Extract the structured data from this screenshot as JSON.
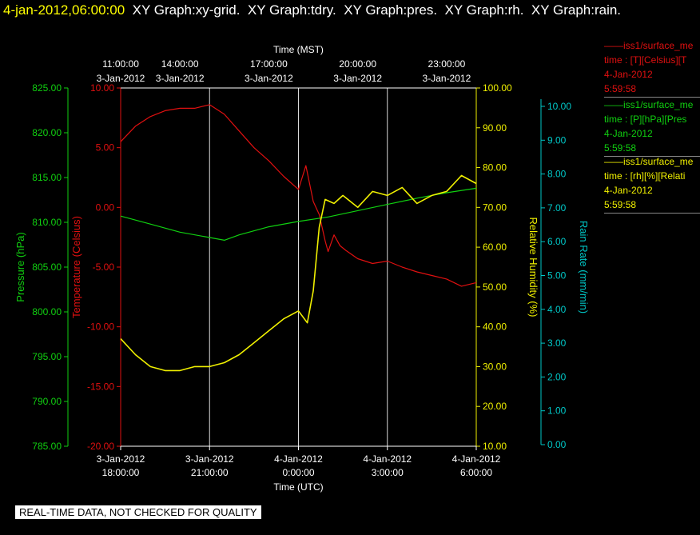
{
  "header": {
    "timestamp": "4-jan-2012,06:00:00",
    "graphs": [
      "XY Graph:xy-grid.",
      "XY Graph:tdry.",
      "XY Graph:pres.",
      "XY Graph:rh.",
      "XY Graph:rain."
    ]
  },
  "colors": {
    "temperature": "#e01010",
    "pressure": "#10d010",
    "humidity": "#f0f000",
    "rain": "#00c8c8",
    "timestamp": "#ffff00",
    "grid": "#ffffff"
  },
  "notice": "REAL-TIME DATA, NOT CHECKED FOR QUALITY",
  "legend": [
    {
      "line1": "iss1/surface_me",
      "line2": "time : [T][Celsius][T",
      "line3": "4-Jan-2012",
      "line4": "5:59:58",
      "color": "#e01010"
    },
    {
      "line1": "iss1/surface_me",
      "line2": "time : [P][hPa][Pres",
      "line3": "4-Jan-2012",
      "line4": "5:59:58",
      "color": "#10d010"
    },
    {
      "line1": "iss1/surface_me",
      "line2": "time : [rh][%][Relati",
      "line3": "4-Jan-2012",
      "line4": "5:59:58",
      "color": "#f0f000"
    }
  ],
  "chart_data": {
    "type": "line",
    "top_axis": {
      "title": "Time (MST)",
      "ticks": [
        {
          "time": "11:00:00",
          "date": "3-Jan-2012"
        },
        {
          "time": "14:00:00",
          "date": "3-Jan-2012"
        },
        {
          "time": "17:00:00",
          "date": "3-Jan-2012"
        },
        {
          "time": "20:00:00",
          "date": "3-Jan-2012"
        },
        {
          "time": "23:00:00",
          "date": "3-Jan-2012"
        }
      ]
    },
    "bottom_axis": {
      "title": "Time (UTC)",
      "range": [
        "2012-01-03 18:00:00",
        "2012-01-04 06:00:00"
      ],
      "ticks": [
        {
          "date": "3-Jan-2012",
          "time": "18:00:00"
        },
        {
          "date": "3-Jan-2012",
          "time": "21:00:00"
        },
        {
          "date": "4-Jan-2012",
          "time": "0:00:00"
        },
        {
          "date": "4-Jan-2012",
          "time": "3:00:00"
        },
        {
          "date": "4-Jan-2012",
          "time": "6:00:00"
        }
      ]
    },
    "axes": {
      "pressure": {
        "label": "Pressure (hPa)",
        "range": [
          785,
          825
        ],
        "ticks": [
          "825.00",
          "820.00",
          "815.00",
          "810.00",
          "805.00",
          "800.00",
          "795.00",
          "790.00",
          "785.00"
        ]
      },
      "temperature": {
        "label": "Temperature (Celsius)",
        "range": [
          -20,
          10
        ],
        "ticks": [
          "10.00",
          "5.00",
          "0.00",
          "-5.00",
          "-10.00",
          "-15.00",
          "-20.00"
        ]
      },
      "humidity": {
        "label": "Relative Humidity (%)",
        "range": [
          10,
          100
        ],
        "ticks": [
          "100.00",
          "90.00",
          "80.00",
          "70.00",
          "60.00",
          "50.00",
          "40.00",
          "30.00",
          "20.00",
          "10.00"
        ]
      },
      "rain": {
        "label": "Rain Rate (mm/min)",
        "range": [
          0,
          10.5
        ],
        "ticks": [
          "10.00",
          "9.00",
          "8.00",
          "7.00",
          "6.00",
          "5.00",
          "4.00",
          "3.00",
          "2.00",
          "1.00",
          "0.00"
        ]
      }
    },
    "grid": true,
    "series": [
      {
        "axis": "temperature",
        "x_hours_utc": [
          0,
          0.5,
          1,
          1.5,
          2,
          2.5,
          3,
          3.5,
          4,
          4.5,
          5,
          5.5,
          6,
          6.25,
          6.5,
          6.7,
          6.9,
          7,
          7.2,
          7.4,
          7.6,
          8,
          8.5,
          9,
          9.5,
          10,
          10.5,
          11,
          11.5,
          12
        ],
        "values": [
          5.5,
          6.8,
          7.6,
          8.1,
          8.3,
          8.3,
          8.6,
          7.8,
          6.4,
          5.0,
          3.9,
          2.6,
          1.5,
          3.5,
          0.5,
          -0.6,
          -2.8,
          -3.7,
          -2.3,
          -3.2,
          -3.6,
          -4.3,
          -4.7,
          -4.5,
          -5.0,
          -5.4,
          -5.7,
          -6.0,
          -6.6,
          -6.3
        ]
      },
      {
        "axis": "pressure",
        "x_hours_utc": [
          0,
          1,
          2,
          3,
          3.5,
          4,
          5,
          6,
          7,
          8,
          9,
          10,
          11,
          12
        ],
        "values": [
          810.7,
          809.8,
          808.9,
          808.3,
          808.0,
          808.6,
          809.5,
          810.1,
          810.6,
          811.3,
          812.0,
          812.7,
          813.3,
          813.8
        ]
      },
      {
        "axis": "humidity",
        "x_hours_utc": [
          0,
          0.5,
          1,
          1.5,
          2,
          2.5,
          3,
          3.5,
          4,
          4.5,
          5,
          5.5,
          6,
          6.3,
          6.5,
          6.7,
          6.9,
          7.2,
          7.5,
          8,
          8.5,
          9,
          9.5,
          10,
          10.5,
          11,
          11.5,
          12
        ],
        "values": [
          37,
          33,
          30,
          29,
          29,
          30,
          30,
          31,
          33,
          36,
          39,
          42,
          44,
          41,
          49,
          65,
          72,
          71,
          73,
          70,
          74,
          73,
          75,
          71,
          73,
          74,
          78,
          76
        ]
      }
    ]
  }
}
